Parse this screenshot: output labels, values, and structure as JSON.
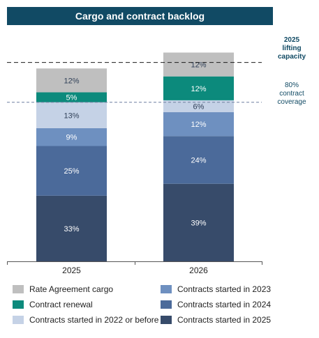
{
  "chart_data": {
    "type": "bar",
    "stacked": true,
    "title": "Cargo and contract backlog",
    "categories": [
      "2025",
      "2026"
    ],
    "ylim": [
      0,
      100
    ],
    "series": [
      {
        "name": "Contracts started in 2025",
        "color": "#374b6a",
        "values": [
          33,
          39
        ]
      },
      {
        "name": "Contracts started in 2024",
        "color": "#4b6a9a",
        "values": [
          25,
          24
        ]
      },
      {
        "name": "Contracts started in 2023",
        "color": "#6e90c0",
        "values": [
          9,
          12
        ]
      },
      {
        "name": "Contracts started in 2022 or before",
        "color": "#c5d2e6",
        "values": [
          13,
          6
        ]
      },
      {
        "name": "Contract renewal",
        "color": "#0c8a7c",
        "values": [
          5,
          12
        ]
      },
      {
        "name": "Rate Agreement cargo",
        "color": "#bfbfbf",
        "values": [
          12,
          12
        ]
      }
    ],
    "value_labels": [
      [
        "33%",
        "25%",
        "9%",
        "13%",
        "5%",
        "12%"
      ],
      [
        "39%",
        "24%",
        "12%",
        "6%",
        "12%",
        "12%"
      ]
    ],
    "reference_lines": [
      {
        "label": [
          "2025",
          "lifting",
          "capacity"
        ],
        "value": 100,
        "style": "dashed",
        "color": "#1a1a1a"
      },
      {
        "label": [
          "80%",
          "contract",
          "coverage"
        ],
        "value": 80,
        "style": "dashed",
        "color": "#6e7fa0"
      }
    ],
    "legend": {
      "placement": "bottom",
      "order": [
        "Rate Agreement cargo",
        "Contract renewal",
        "Contracts started in 2022 or before",
        "Contracts started in 2023",
        "Contracts started in 2024",
        "Contracts started in 2025"
      ]
    }
  }
}
